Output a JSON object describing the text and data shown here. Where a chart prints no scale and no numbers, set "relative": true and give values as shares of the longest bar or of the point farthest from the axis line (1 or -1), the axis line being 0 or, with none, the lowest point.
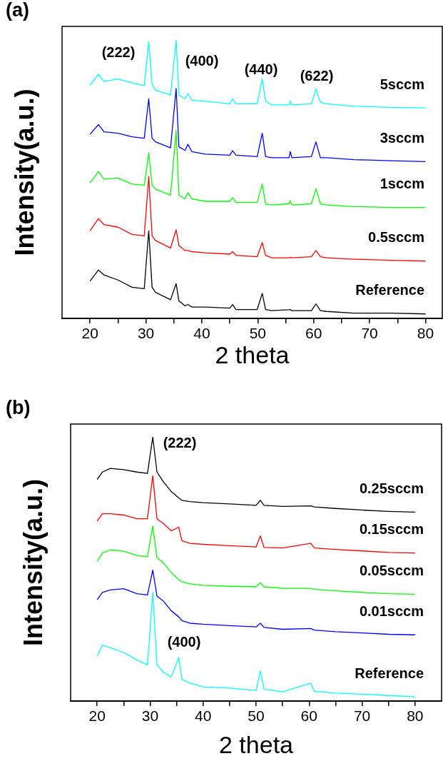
{
  "chart_data": [
    {
      "type": "line",
      "title": "(a)",
      "xlabel": "2 theta",
      "ylabel": "Intensity(a.u.)",
      "relative": true,
      "tick_labels": "x",
      "xlim": [
        15,
        83
      ],
      "xticks": [
        20,
        {
          "value": 25,
          "label": null
        },
        30,
        {
          "value": 35,
          "label": null
        },
        40,
        {
          "value": 45,
          "label": null
        },
        50,
        {
          "value": 55,
          "label": null
        },
        60,
        {
          "value": 65,
          "label": null
        },
        70,
        {
          "value": 75,
          "label": null
        },
        80
      ],
      "x": [
        20,
        21.5,
        22.5,
        25,
        27.5,
        29.7,
        30.5,
        31.1,
        31.7,
        34.4,
        35.4,
        35.9,
        37,
        37.5,
        38.2,
        40.6,
        45,
        45.5,
        46.1,
        49.9,
        50.8,
        51.4,
        52.5,
        55.6,
        55.8,
        56.1,
        59.6,
        60.4,
        61.2,
        62.3,
        67.2,
        73.8,
        80
      ],
      "series": [
        {
          "name": "5sccm",
          "color": "#00ffff",
          "values": [
            0.838,
            0.878,
            0.852,
            0.861,
            0.847,
            0.838,
            0.995,
            0.843,
            0.821,
            0.803,
            1.0,
            0.803,
            0.79,
            0.808,
            0.785,
            0.781,
            0.772,
            0.79,
            0.772,
            0.772,
            0.862,
            0.781,
            0.768,
            0.768,
            0.781,
            0.768,
            0.772,
            0.825,
            0.777,
            0.772,
            0.763,
            0.759,
            0.757
          ]
        },
        {
          "name": "3sccm",
          "color": "#0000ff",
          "values": [
            0.662,
            0.697,
            0.671,
            0.666,
            0.653,
            0.648,
            0.79,
            0.648,
            0.635,
            0.613,
            0.827,
            0.617,
            0.604,
            0.626,
            0.6,
            0.591,
            0.587,
            0.603,
            0.587,
            0.582,
            0.666,
            0.582,
            0.578,
            0.578,
            0.6,
            0.578,
            0.582,
            0.635,
            0.578,
            0.578,
            0.571,
            0.567,
            0.564
          ]
        },
        {
          "name": "1sccm",
          "color": "#00ff00",
          "values": [
            0.487,
            0.528,
            0.501,
            0.505,
            0.483,
            0.479,
            0.595,
            0.479,
            0.465,
            0.443,
            0.675,
            0.443,
            0.43,
            0.452,
            0.43,
            0.421,
            0.421,
            0.434,
            0.417,
            0.417,
            0.483,
            0.412,
            0.408,
            0.412,
            0.423,
            0.408,
            0.412,
            0.467,
            0.412,
            0.408,
            0.402,
            0.399,
            0.399
          ]
        },
        {
          "name": "0.5sccm",
          "color": "#ff0000",
          "values": [
            0.315,
            0.359,
            0.337,
            0.328,
            0.302,
            0.297,
            0.51,
            0.297,
            0.28,
            0.253,
            0.319,
            0.262,
            0.244,
            0.244,
            0.24,
            0.236,
            0.231,
            0.24,
            0.227,
            0.222,
            0.273,
            0.227,
            0.218,
            0.218,
            0.22,
            0.218,
            0.222,
            0.244,
            0.222,
            0.218,
            0.213,
            0.209,
            0.206
          ]
        },
        {
          "name": "Reference",
          "color": "#000000",
          "values": [
            0.134,
            0.174,
            0.156,
            0.138,
            0.112,
            0.107,
            0.315,
            0.112,
            0.094,
            0.067,
            0.125,
            0.063,
            0.045,
            0.05,
            0.041,
            0.041,
            0.037,
            0.05,
            0.032,
            0.032,
            0.09,
            0.032,
            0.028,
            0.031,
            0.032,
            0.028,
            0.028,
            0.052,
            0.028,
            0.025,
            0.019,
            0.019,
            0.016
          ]
        }
      ],
      "annotations": [
        "(222)",
        "(400)",
        "(440)",
        "(622)"
      ]
    },
    {
      "type": "line",
      "title": "(b)",
      "xlabel": "2 theta",
      "ylabel": "Intensity(a.u.)",
      "relative": true,
      "tick_labels": "x",
      "xlim": [
        15,
        85
      ],
      "xticks": [
        20,
        {
          "value": 25,
          "label": null
        },
        30,
        {
          "value": 35,
          "label": null
        },
        40,
        {
          "value": 45,
          "label": null
        },
        50,
        {
          "value": 55,
          "label": null
        },
        60,
        {
          "value": 65,
          "label": null
        },
        70,
        {
          "value": 75,
          "label": null
        },
        80
      ],
      "x": [
        20,
        21,
        22.5,
        25,
        27.5,
        29.5,
        30.5,
        31.3,
        32.5,
        34,
        35.4,
        36,
        37.5,
        40,
        45,
        50,
        50.8,
        51.5,
        55,
        60.3,
        61,
        65,
        70,
        75,
        80
      ],
      "series": [
        {
          "name": "0.25sccm",
          "color": "#000000",
          "values": [
            0.84,
            0.868,
            0.882,
            0.877,
            0.868,
            0.863,
            1.0,
            0.868,
            0.831,
            0.794,
            0.77,
            0.761,
            0.756,
            0.752,
            0.747,
            0.742,
            0.761,
            0.742,
            0.738,
            0.74,
            0.736,
            0.73,
            0.724,
            0.719,
            0.716
          ]
        },
        {
          "name": "0.15sccm",
          "color": "#ff0000",
          "values": [
            0.682,
            0.71,
            0.71,
            0.705,
            0.691,
            0.691,
            0.854,
            0.691,
            0.673,
            0.645,
            0.659,
            0.608,
            0.598,
            0.594,
            0.589,
            0.584,
            0.626,
            0.582,
            0.58,
            0.598,
            0.58,
            0.575,
            0.569,
            0.563,
            0.561
          ]
        },
        {
          "name": "0.05sccm",
          "color": "#00ff00",
          "values": [
            0.529,
            0.561,
            0.573,
            0.568,
            0.552,
            0.547,
            0.663,
            0.543,
            0.524,
            0.487,
            0.46,
            0.452,
            0.444,
            0.439,
            0.435,
            0.433,
            0.449,
            0.433,
            0.427,
            0.427,
            0.424,
            0.418,
            0.412,
            0.407,
            0.405
          ]
        },
        {
          "name": "0.01sccm",
          "color": "#0000ff",
          "values": [
            0.384,
            0.412,
            0.421,
            0.426,
            0.407,
            0.402,
            0.496,
            0.398,
            0.379,
            0.342,
            0.319,
            0.305,
            0.295,
            0.291,
            0.286,
            0.281,
            0.295,
            0.279,
            0.272,
            0.275,
            0.269,
            0.263,
            0.258,
            0.253,
            0.251
          ]
        },
        {
          "name": "Reference",
          "color": "#00ffff",
          "values": [
            0.17,
            0.212,
            0.202,
            0.184,
            0.156,
            0.137,
            0.412,
            0.137,
            0.109,
            0.091,
            0.165,
            0.082,
            0.068,
            0.054,
            0.049,
            0.04,
            0.114,
            0.045,
            0.035,
            0.068,
            0.037,
            0.03,
            0.026,
            0.021,
            0.016
          ]
        }
      ],
      "annotations": [
        "(222)",
        "(400)"
      ]
    }
  ]
}
